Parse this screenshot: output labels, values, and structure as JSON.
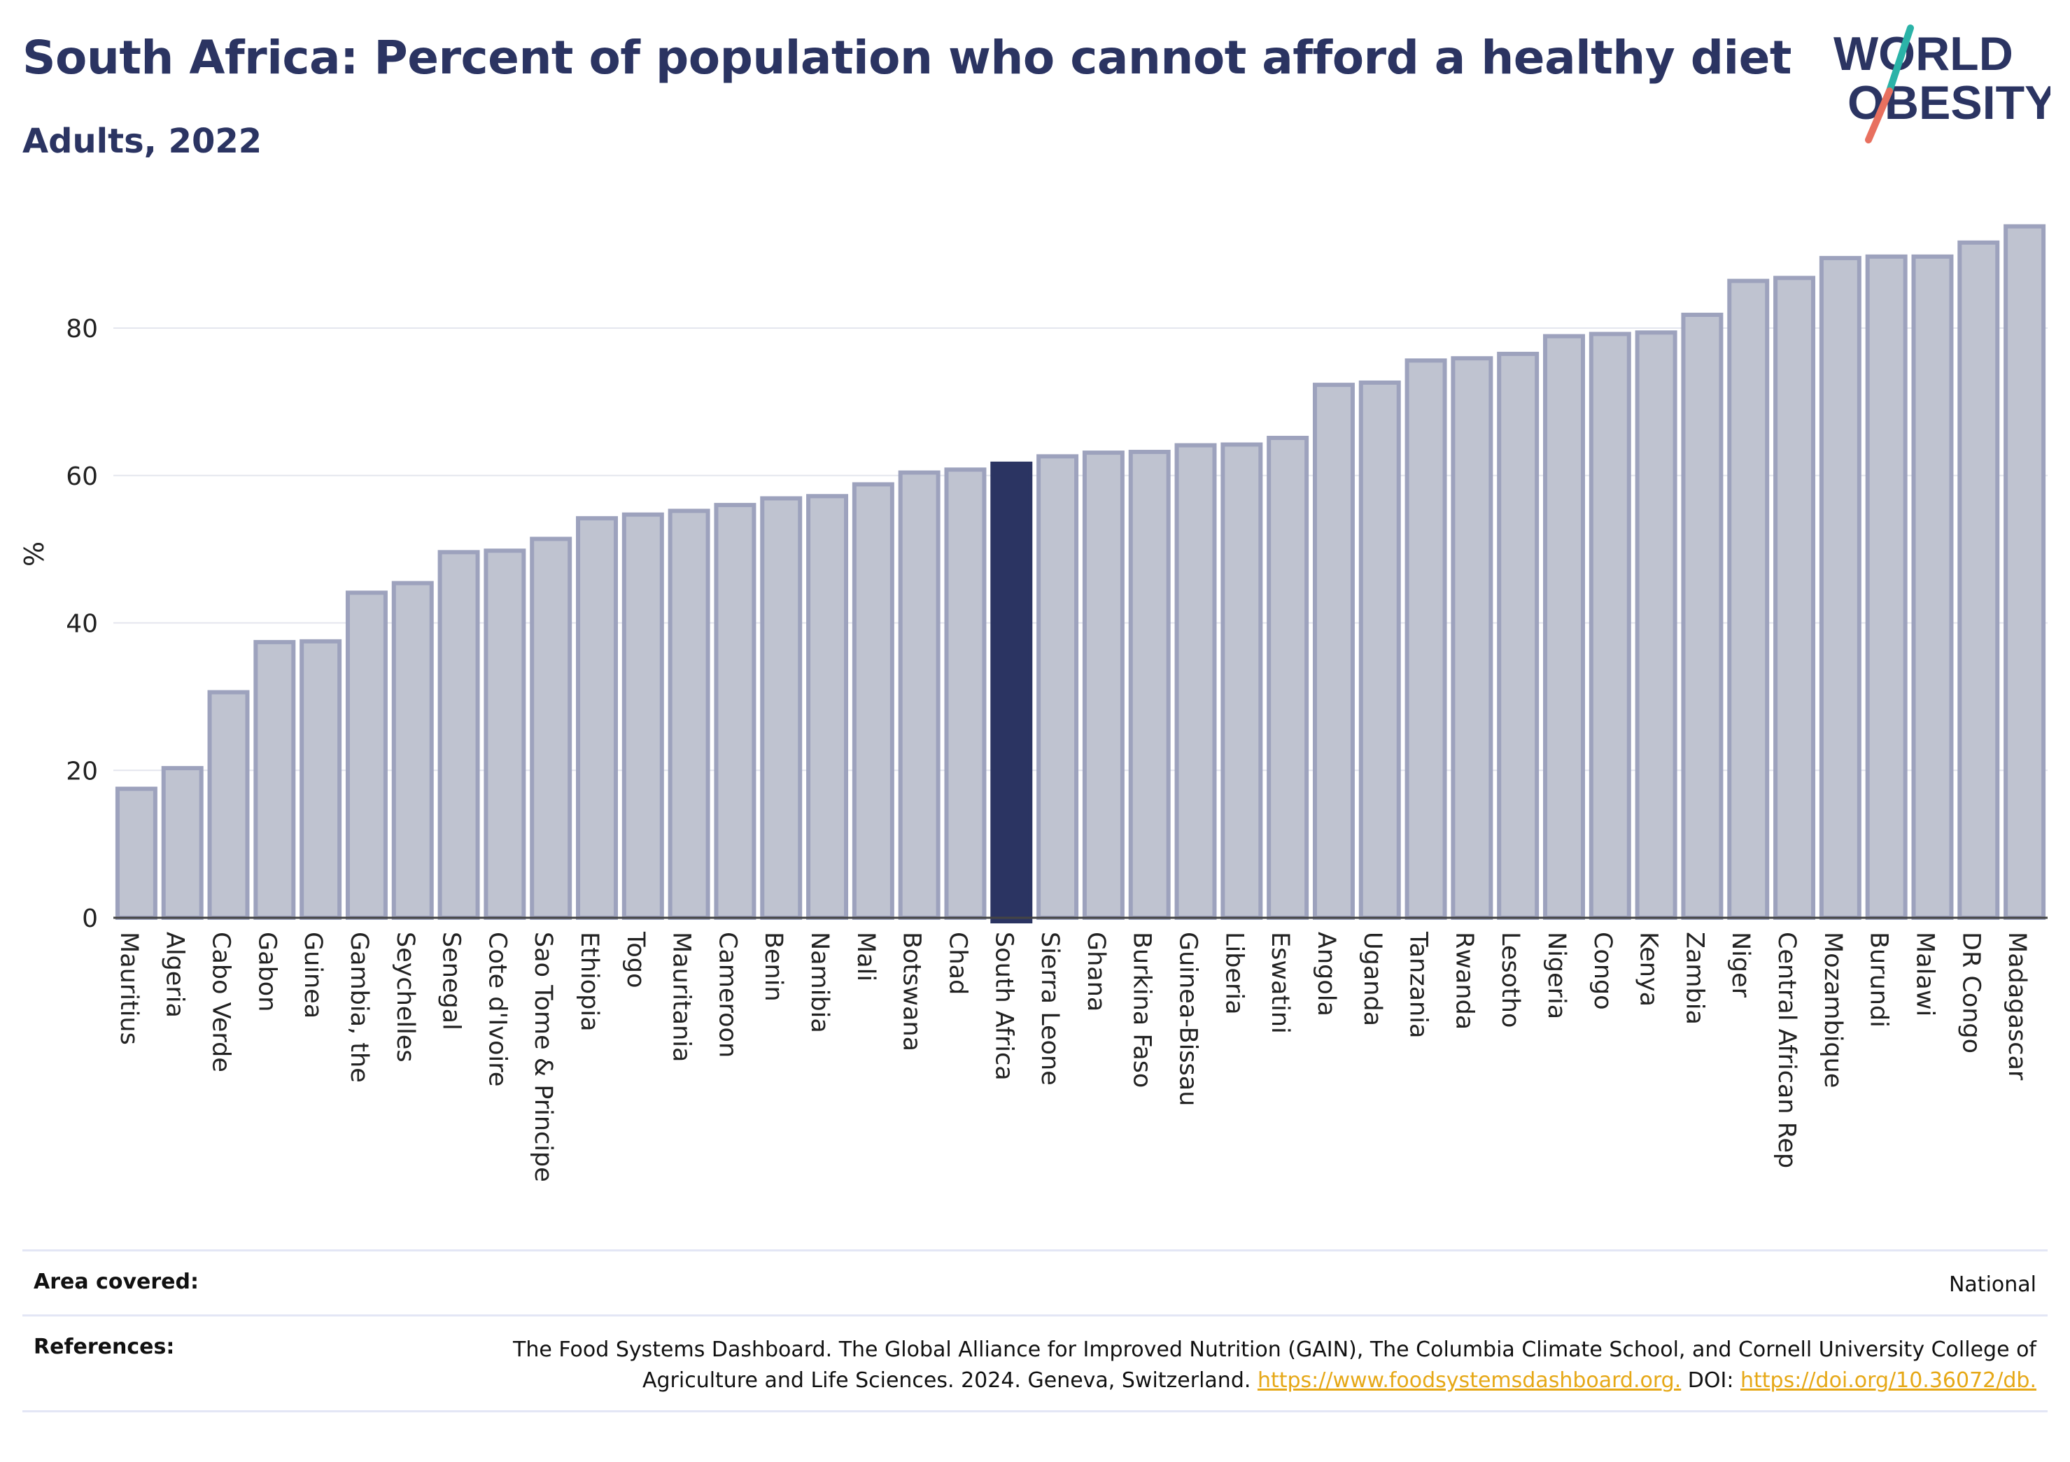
{
  "title": "South Africa: Percent of population who cannot afford a healthy diet",
  "subtitle": "Adults, 2022",
  "logo": {
    "line1": "WORLD",
    "line2": "OBESITY"
  },
  "colors": {
    "highlight": "#2b3462",
    "bar_fill": "#bfc3d0",
    "bar_stroke": "#9da2bd",
    "text": "#2b3462",
    "link": "#e6a817"
  },
  "chart_data": {
    "type": "bar",
    "categories": [
      "Mauritius",
      "Algeria",
      "Cabo Verde",
      "Gabon",
      "Guinea",
      "Gambia, the",
      "Seychelles",
      "Senegal",
      "Cote d'Ivoire",
      "Sao Tome & Principe",
      "Ethiopia",
      "Togo",
      "Mauritania",
      "Cameroon",
      "Benin",
      "Namibia",
      "Mali",
      "Botswana",
      "Chad",
      "South Africa",
      "Sierra Leone",
      "Ghana",
      "Burkina Faso",
      "Guinea-Bissau",
      "Liberia",
      "Eswatini",
      "Angola",
      "Uganda",
      "Tanzania",
      "Rwanda",
      "Lesotho",
      "Nigeria",
      "Congo",
      "Kenya",
      "Zambia",
      "Niger",
      "Central African Rep",
      "Mozambique",
      "Burundi",
      "Malawi",
      "DR Congo",
      "Madagascar"
    ],
    "values": [
      17.5,
      20.3,
      30.6,
      37.4,
      37.5,
      44.1,
      45.4,
      49.6,
      49.8,
      51.4,
      54.2,
      54.7,
      55.2,
      56.0,
      56.9,
      57.2,
      58.8,
      60.4,
      60.8,
      61.6,
      62.6,
      63.1,
      63.2,
      64.1,
      64.2,
      65.1,
      72.3,
      72.6,
      75.6,
      75.9,
      76.5,
      78.9,
      79.2,
      79.4,
      81.8,
      86.4,
      86.8,
      89.5,
      89.7,
      89.7,
      91.6,
      93.8
    ],
    "highlight": "South Africa",
    "ylabel": "%",
    "xlabel": "",
    "yticks": [
      0,
      20,
      40,
      60,
      80
    ],
    "ylim": [
      0,
      100
    ],
    "grid": true
  },
  "footer": {
    "area_label": "Area covered:",
    "area_value": "National",
    "ref_label": "References:",
    "ref_text": "The Food Systems Dashboard. The Global Alliance for Improved Nutrition (GAIN), The Columbia Climate School, and Cornell University College of Agriculture and Life Sciences. 2024. Geneva, Switzerland. ",
    "ref_link1": "https://www.foodsystemsdashboard.org.",
    "ref_doi": " DOI: ",
    "ref_link2": "https://doi.org/10.36072/db."
  }
}
